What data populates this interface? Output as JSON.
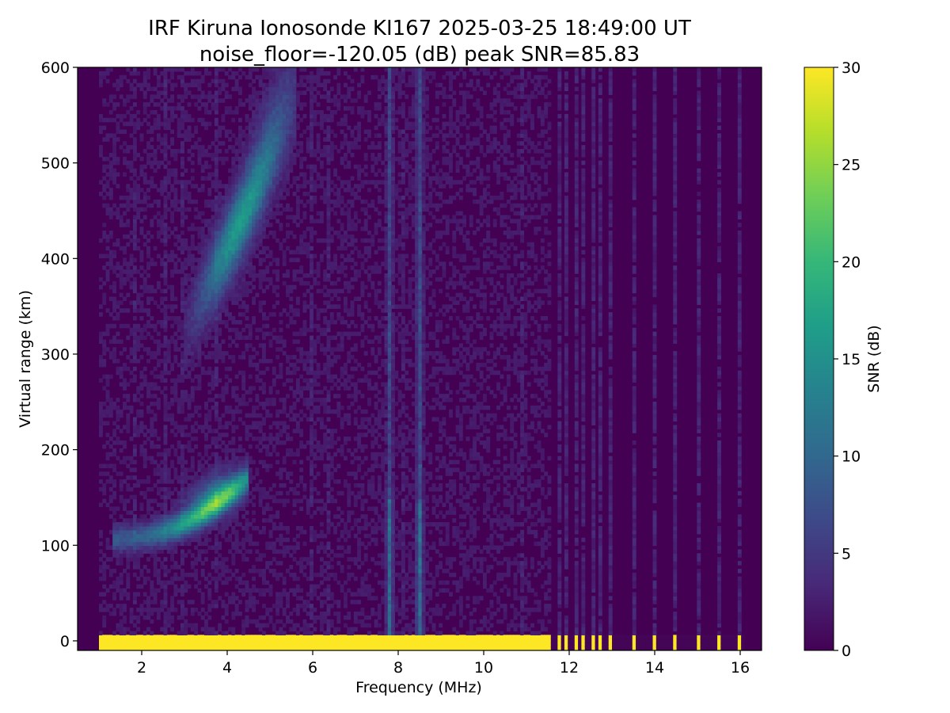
{
  "chart_data": {
    "type": "heatmap",
    "title_line1": "IRF Kiruna Ionosonde KI167 2025-03-25 18:49:00  UT",
    "title_line2": "noise_floor=-120.05 (dB) peak SNR=85.83",
    "xlabel": "Frequency (MHz)",
    "ylabel": "Virtual range (km)",
    "xlim": [
      0.5,
      16.5
    ],
    "ylim": [
      -10,
      600
    ],
    "xticks": [
      2,
      4,
      6,
      8,
      10,
      12,
      14,
      16
    ],
    "yticks": [
      0,
      100,
      200,
      300,
      400,
      500,
      600
    ],
    "data_freq_range_mhz": [
      1.0,
      16.1
    ],
    "colorbar": {
      "label": "SNR (dB)",
      "min": 0,
      "max": 30,
      "ticks": [
        0,
        5,
        10,
        15,
        20,
        25,
        30
      ],
      "colormap": "viridis",
      "colormap_stops": [
        "#440154",
        "#482878",
        "#3e4989",
        "#31688e",
        "#26828e",
        "#1f9e89",
        "#35b779",
        "#6ece58",
        "#b5de2b",
        "#fde725"
      ]
    },
    "features": [
      {
        "name": "ground-echo",
        "freq_mhz": [
          1.0,
          11.6
        ],
        "range_km": [
          -5,
          5
        ],
        "snr_db": 30
      },
      {
        "name": "E-layer-trace",
        "freq_mhz": [
          1.3,
          4.5
        ],
        "range_km": [
          105,
          180
        ],
        "peak_snr_db": 22
      },
      {
        "name": "F-layer-trace",
        "freq_mhz": [
          3.0,
          5.6
        ],
        "range_km": [
          380,
          560
        ],
        "peak_snr_db": 18
      },
      {
        "name": "interference-line-7.8",
        "freq_mhz": 7.8,
        "range_km": [
          0,
          600
        ],
        "snr_db": 6
      },
      {
        "name": "interference-line-8.5",
        "freq_mhz": 8.5,
        "range_km": [
          0,
          600
        ],
        "snr_db": 7
      }
    ],
    "discrete_pulses_mhz": [
      11.75,
      11.95,
      12.15,
      12.35,
      12.55,
      12.75,
      12.95,
      13.5,
      14.0,
      14.5,
      15.0,
      15.5,
      16.0
    ]
  }
}
